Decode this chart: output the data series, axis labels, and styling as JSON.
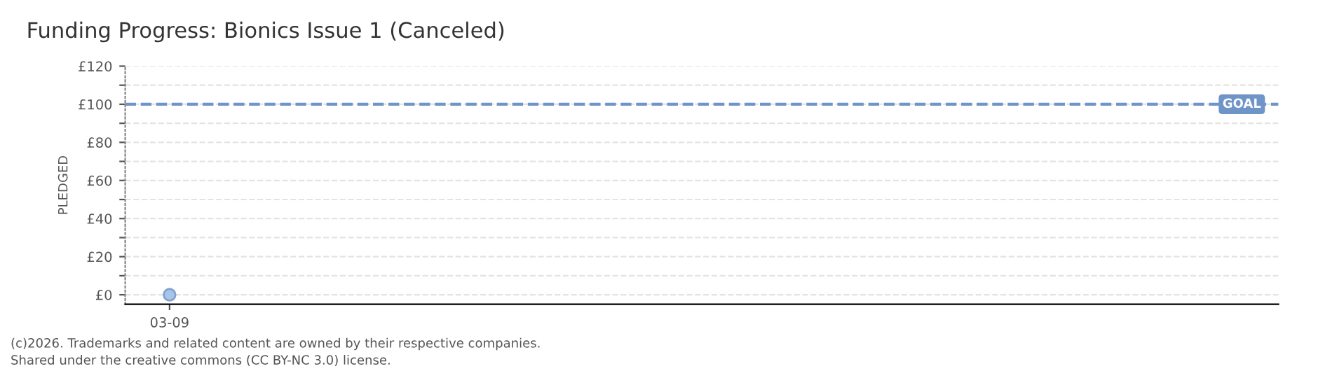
{
  "chart_data": {
    "type": "line",
    "title": "Funding Progress: Bionics Issue 1 (Canceled)",
    "ylabel": "PLEDGED",
    "categories": [
      "03-09"
    ],
    "series": [
      {
        "color": "#a9c4e6",
        "values": [
          0
        ]
      }
    ],
    "marker": "circle",
    "ylim": [
      -5,
      120
    ],
    "yticks": [
      {
        "value": 0,
        "label": "£0"
      },
      {
        "value": 10,
        "label": null
      },
      {
        "value": 20,
        "label": "£20"
      },
      {
        "value": 30,
        "label": null
      },
      {
        "value": 40,
        "label": "£40"
      },
      {
        "value": 50,
        "label": null
      },
      {
        "value": 60,
        "label": "£60"
      },
      {
        "value": 70,
        "label": null
      },
      {
        "value": 80,
        "label": "£80"
      },
      {
        "value": 90,
        "label": null
      },
      {
        "value": 100,
        "label": "£100"
      },
      {
        "value": 110,
        "label": null
      },
      {
        "value": 120,
        "label": "£120"
      }
    ],
    "grid": "y",
    "ref_lines": [
      {
        "axis": "y",
        "value": 100,
        "label": "GOAL",
        "color": "#6f94c8",
        "line_style": "dashed"
      }
    ],
    "annotations": [
      "(c)2026. Trademarks and related content are owned by their respective companies.",
      "Shared under the creative commons (CC BY-NC 3.0) license."
    ]
  }
}
